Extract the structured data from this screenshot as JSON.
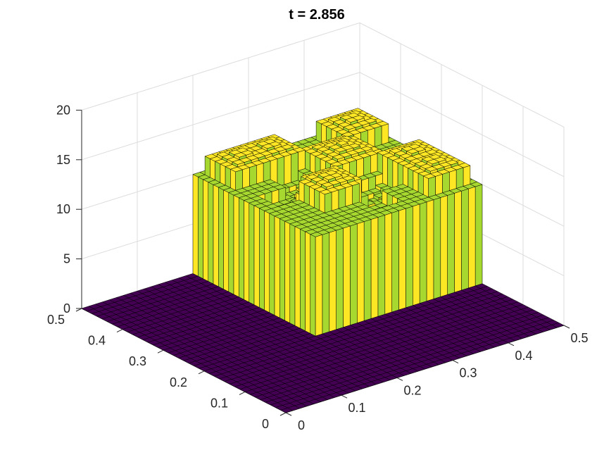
{
  "figure": {
    "title": "t = 2.856"
  },
  "chart_data": {
    "type": "surface",
    "title": "t = 2.856",
    "xlabel": "",
    "ylabel": "",
    "zlabel": "",
    "xlim": [
      0,
      0.5
    ],
    "ylim": [
      0,
      0.5
    ],
    "zlim": [
      0,
      20
    ],
    "x_ticks": [
      "0",
      "0.1",
      "0.2",
      "0.3",
      "0.4",
      "0.5"
    ],
    "y_ticks": [
      "0",
      "0.1",
      "0.2",
      "0.3",
      "0.4",
      "0.5"
    ],
    "z_ticks": [
      "0",
      "5",
      "10",
      "15",
      "20"
    ],
    "grid": true,
    "colormap": [
      "#440154",
      "#a6d82f",
      "#fde724"
    ],
    "structure": {
      "plateau": {
        "x": [
          0.2,
          0.5
        ],
        "y": [
          0.2,
          0.5
        ]
      },
      "wall_height": 12,
      "inner_floor_height": 10,
      "bump_height": 12.5,
      "dip_height": 8,
      "bumps": [
        [
          0.45,
          0.45
        ],
        [
          0.3,
          0.45
        ],
        [
          0.45,
          0.3
        ],
        [
          0.38,
          0.38
        ],
        [
          0.3,
          0.3
        ],
        [
          0.25,
          0.45
        ],
        [
          0.45,
          0.25
        ]
      ],
      "dips": [
        [
          0.3,
          0.38
        ],
        [
          0.38,
          0.3
        ],
        [
          0.35,
          0.25
        ],
        [
          0.25,
          0.35
        ]
      ]
    }
  }
}
